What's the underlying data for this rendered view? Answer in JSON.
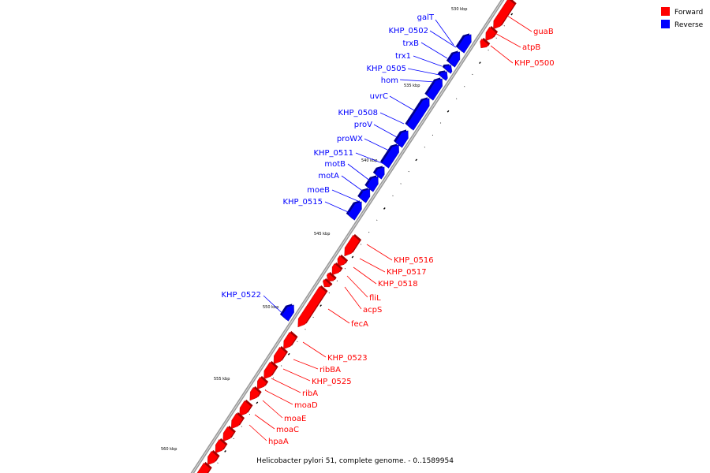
{
  "caption": "Helicobacter pylori 51, complete genome. - 0..1589954",
  "colors": {
    "forward": "#ff0000",
    "reverse": "#0000ff",
    "backbone": "#999999",
    "tick": "#000000"
  },
  "legend": [
    {
      "label": "Forward",
      "strand": "forward"
    },
    {
      "label": "Reverse",
      "strand": "reverse"
    }
  ],
  "major_ticks": [
    "530 kbp",
    "535 kbp",
    "540 kbp",
    "545 kbp",
    "550 kbp",
    "555 kbp",
    "560 kbp"
  ],
  "reverse_labels": [
    "galT",
    "KHP_0502",
    "trxB",
    "trx1",
    "KHP_0505",
    "hom",
    "uvrC",
    "KHP_0508",
    "proV",
    "proWX",
    "KHP_0511",
    "motB",
    "motA",
    "moeB",
    "KHP_0515",
    "KHP_0522"
  ],
  "forward_labels": [
    "guaB",
    "atpB",
    "KHP_0500",
    "KHP_0516",
    "KHP_0517",
    "KHP_0518",
    "fliL",
    "acpS",
    "fecA",
    "KHP_0523",
    "ribBA",
    "KHP_0525",
    "ribA",
    "moaD",
    "moaE",
    "moaC",
    "hpaA"
  ]
}
